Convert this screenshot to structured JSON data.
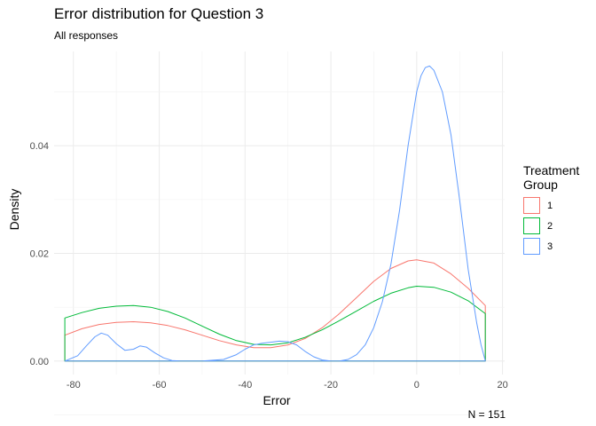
{
  "chart_data": {
    "type": "line",
    "title": "Error distribution for Question 3",
    "subtitle": "All responses",
    "xlabel": "Error",
    "ylabel": "Density",
    "caption": "N = 151",
    "xlim": [
      -84.5,
      20.5
    ],
    "ylim": [
      -0.0025,
      0.0575
    ],
    "x_ticks": [
      -80,
      -60,
      -40,
      -20,
      0,
      20
    ],
    "y_ticks": [
      0.0,
      0.02,
      0.04
    ],
    "y_tick_labels": [
      "0.00",
      "0.02",
      "0.04"
    ],
    "grid": true,
    "legend": {
      "title": "Treatment Group",
      "position": "right"
    },
    "series": [
      {
        "name": "1",
        "color": "#F8766D",
        "x": [
          -82,
          -78,
          -74,
          -70,
          -66,
          -62,
          -58,
          -54,
          -50,
          -46,
          -42,
          -38,
          -34,
          -30,
          -26,
          -22,
          -18,
          -14,
          -10,
          -6,
          -2,
          0,
          4,
          8,
          12,
          16
        ],
        "y": [
          0.0048,
          0.006,
          0.0068,
          0.0072,
          0.0073,
          0.0071,
          0.0066,
          0.0058,
          0.0048,
          0.0038,
          0.003,
          0.0025,
          0.0025,
          0.003,
          0.0042,
          0.0062,
          0.0088,
          0.0118,
          0.0148,
          0.0172,
          0.0186,
          0.0188,
          0.0182,
          0.0162,
          0.0135,
          0.0103
        ]
      },
      {
        "name": "2",
        "color": "#00BA38",
        "x": [
          -82,
          -78,
          -74,
          -70,
          -66,
          -62,
          -58,
          -54,
          -50,
          -46,
          -42,
          -38,
          -34,
          -30,
          -26,
          -22,
          -18,
          -14,
          -10,
          -6,
          -2,
          0,
          4,
          8,
          12,
          16
        ],
        "y": [
          0.008,
          0.009,
          0.0098,
          0.0102,
          0.0103,
          0.01,
          0.0092,
          0.008,
          0.0065,
          0.005,
          0.0038,
          0.0031,
          0.003,
          0.0034,
          0.0044,
          0.0058,
          0.0075,
          0.0093,
          0.0111,
          0.0126,
          0.0136,
          0.0139,
          0.0137,
          0.0128,
          0.0112,
          0.0088
        ]
      },
      {
        "name": "3",
        "color": "#619CFF",
        "x": [
          -82,
          -79,
          -77,
          -75,
          -73.5,
          -72,
          -70,
          -68,
          -66,
          -64.5,
          -63,
          -61,
          -59,
          -57,
          -55,
          -50,
          -45,
          -42,
          -40,
          -38,
          -36,
          -34,
          -32,
          -30,
          -28,
          -26,
          -24,
          -22,
          -20,
          -18,
          -16,
          -14,
          -12,
          -10,
          -8,
          -6,
          -4,
          -2,
          0,
          1,
          2,
          3,
          4,
          6,
          8,
          10,
          12,
          14,
          15,
          16
        ],
        "y": [
          0.0,
          0.001,
          0.0028,
          0.0045,
          0.0052,
          0.0048,
          0.0032,
          0.002,
          0.0022,
          0.0028,
          0.0026,
          0.0015,
          0.0006,
          0.0001,
          0.0,
          0.0,
          0.0003,
          0.0012,
          0.0022,
          0.003,
          0.0033,
          0.0035,
          0.0037,
          0.0036,
          0.003,
          0.0018,
          0.0008,
          0.0002,
          0.0,
          0.0,
          0.0003,
          0.0012,
          0.003,
          0.0062,
          0.011,
          0.018,
          0.028,
          0.04,
          0.05,
          0.053,
          0.0545,
          0.0548,
          0.054,
          0.05,
          0.042,
          0.03,
          0.017,
          0.007,
          0.003,
          0.0
        ]
      }
    ]
  }
}
